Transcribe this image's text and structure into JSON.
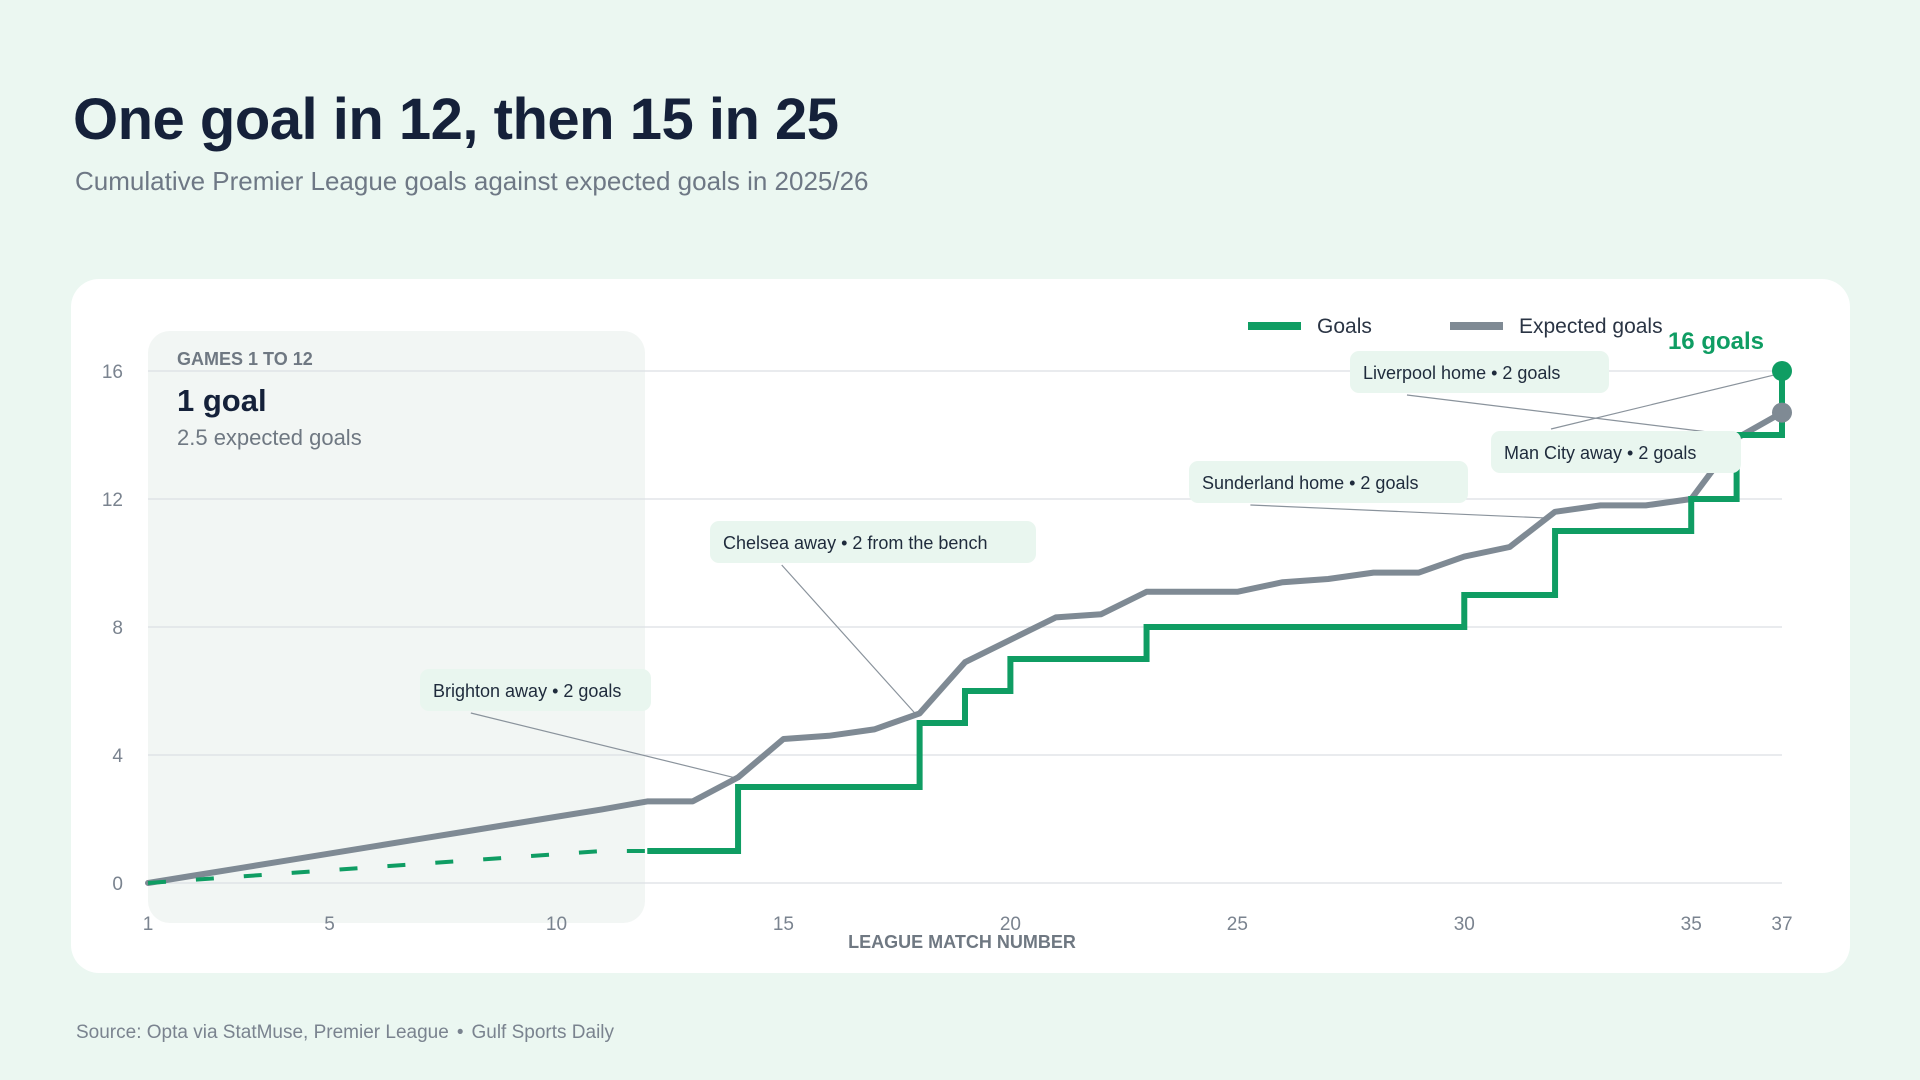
{
  "header": {
    "title": "One goal in 12, then 15 in 25",
    "subtitle": "Cumulative Premier League goals against expected goals in 2025/26"
  },
  "source": {
    "parts": [
      "Source: Opta via StatMuse, Premier League",
      "Gulf Sports Daily"
    ]
  },
  "colors": {
    "goals": "#0f9d63",
    "xg": "#7f8a94",
    "panel": "#f2f6f4",
    "grid": "#dcdfe3",
    "label_bg": "#e9f6ef"
  },
  "panel": {
    "kicker": "GAMES 1 TO 12",
    "headline": "1 goal",
    "detail": "2.5 expected goals"
  },
  "chart_data": {
    "type": "line",
    "xlabel": "LEAGUE MATCH NUMBER",
    "ylabel": "",
    "xlim": [
      1,
      37
    ],
    "ylim": [
      0,
      16
    ],
    "x_ticks": [
      1,
      5,
      10,
      15,
      20,
      25,
      30,
      35,
      37
    ],
    "y_ticks": [
      0,
      4,
      8,
      12,
      16
    ],
    "grid": true,
    "legend": "top-right",
    "series": [
      {
        "name": "Goals",
        "style": "step",
        "color": "#0f9d63",
        "x": [
          1,
          2,
          3,
          4,
          5,
          6,
          7,
          8,
          9,
          10,
          11,
          12,
          13,
          14,
          15,
          16,
          17,
          18,
          19,
          20,
          21,
          22,
          23,
          24,
          25,
          26,
          27,
          28,
          29,
          30,
          31,
          32,
          33,
          34,
          35,
          36,
          37
        ],
        "values": [
          0,
          0.1,
          0.2,
          0.3,
          0.4,
          0.5,
          0.6,
          0.7,
          0.8,
          0.9,
          1,
          1,
          1,
          3,
          3,
          3,
          3,
          5,
          6,
          7,
          7,
          7,
          8,
          8,
          8,
          8,
          8,
          8,
          8,
          9,
          9,
          11,
          11,
          11,
          12,
          14,
          16
        ]
      },
      {
        "name": "Expected goals",
        "style": "line",
        "color": "#7f8a94",
        "x": [
          1,
          2,
          3,
          4,
          5,
          6,
          7,
          8,
          9,
          10,
          11,
          12,
          13,
          14,
          15,
          16,
          17,
          18,
          19,
          20,
          21,
          22,
          23,
          24,
          25,
          26,
          27,
          28,
          29,
          30,
          31,
          32,
          33,
          34,
          35,
          36,
          37
        ],
        "values": [
          0,
          0.23,
          0.46,
          0.69,
          0.92,
          1.15,
          1.38,
          1.61,
          1.84,
          2.07,
          2.3,
          2.55,
          2.55,
          3.3,
          4.5,
          4.6,
          4.8,
          5.3,
          6.9,
          7.6,
          8.3,
          8.4,
          9.1,
          9.1,
          9.1,
          9.4,
          9.5,
          9.7,
          9.7,
          10.2,
          10.5,
          11.6,
          11.8,
          11.8,
          12.0,
          13.9,
          14.7
        ]
      }
    ],
    "end_label": "16 goals",
    "annotations": [
      {
        "label": "Brighton away",
        "detail": "2 goals",
        "match": 14
      },
      {
        "label": "Chelsea away",
        "detail": "2 from the bench",
        "match": 18
      },
      {
        "label": "Sunderland home",
        "detail": "2 goals",
        "match": 32
      },
      {
        "label": "Liverpool home",
        "detail": "2 goals",
        "match": 36
      },
      {
        "label": "Man City away",
        "detail": "2 goals",
        "match": 37
      }
    ]
  }
}
